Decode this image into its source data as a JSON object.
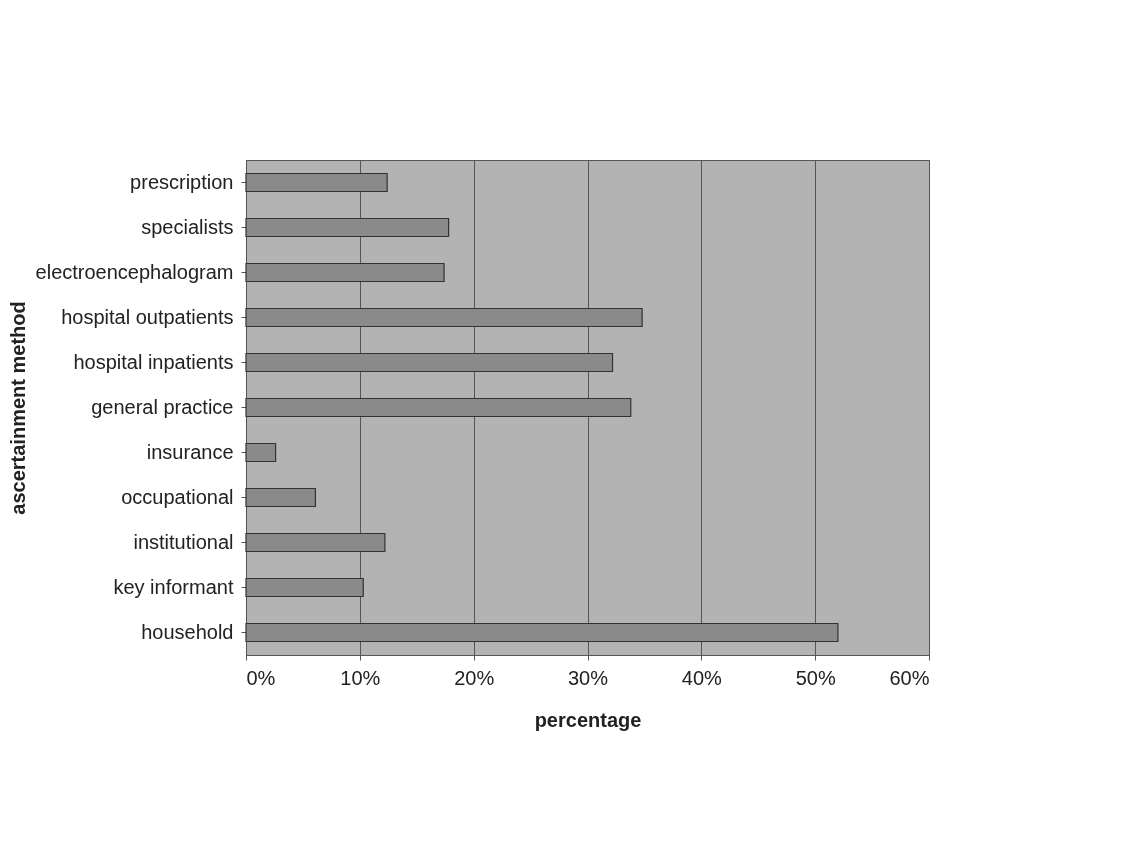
{
  "chart_data": {
    "type": "bar",
    "orientation": "horizontal",
    "xlabel": "percentage",
    "ylabel": "ascertainment method",
    "categories": [
      "prescription",
      "specialists",
      "electroencephalogram",
      "hospital outpatients",
      "hospital inpatients",
      "general practice",
      "insurance",
      "occupational",
      "institutional",
      "key informant",
      "household"
    ],
    "values": [
      12.4,
      17.8,
      17.4,
      34.8,
      32.2,
      33.8,
      2.6,
      6.1,
      12.2,
      10.3,
      52
    ],
    "color": "#8a8a8a",
    "xlim": [
      0,
      60
    ],
    "xticks": [
      {
        "value": 0,
        "label": "0%"
      },
      {
        "value": 10,
        "label": "10%"
      },
      {
        "value": 20,
        "label": "20%"
      },
      {
        "value": 30,
        "label": "30%"
      },
      {
        "value": 40,
        "label": "40%"
      },
      {
        "value": 50,
        "label": "50%"
      },
      {
        "value": 60,
        "label": "60%"
      }
    ],
    "grid": "x"
  }
}
